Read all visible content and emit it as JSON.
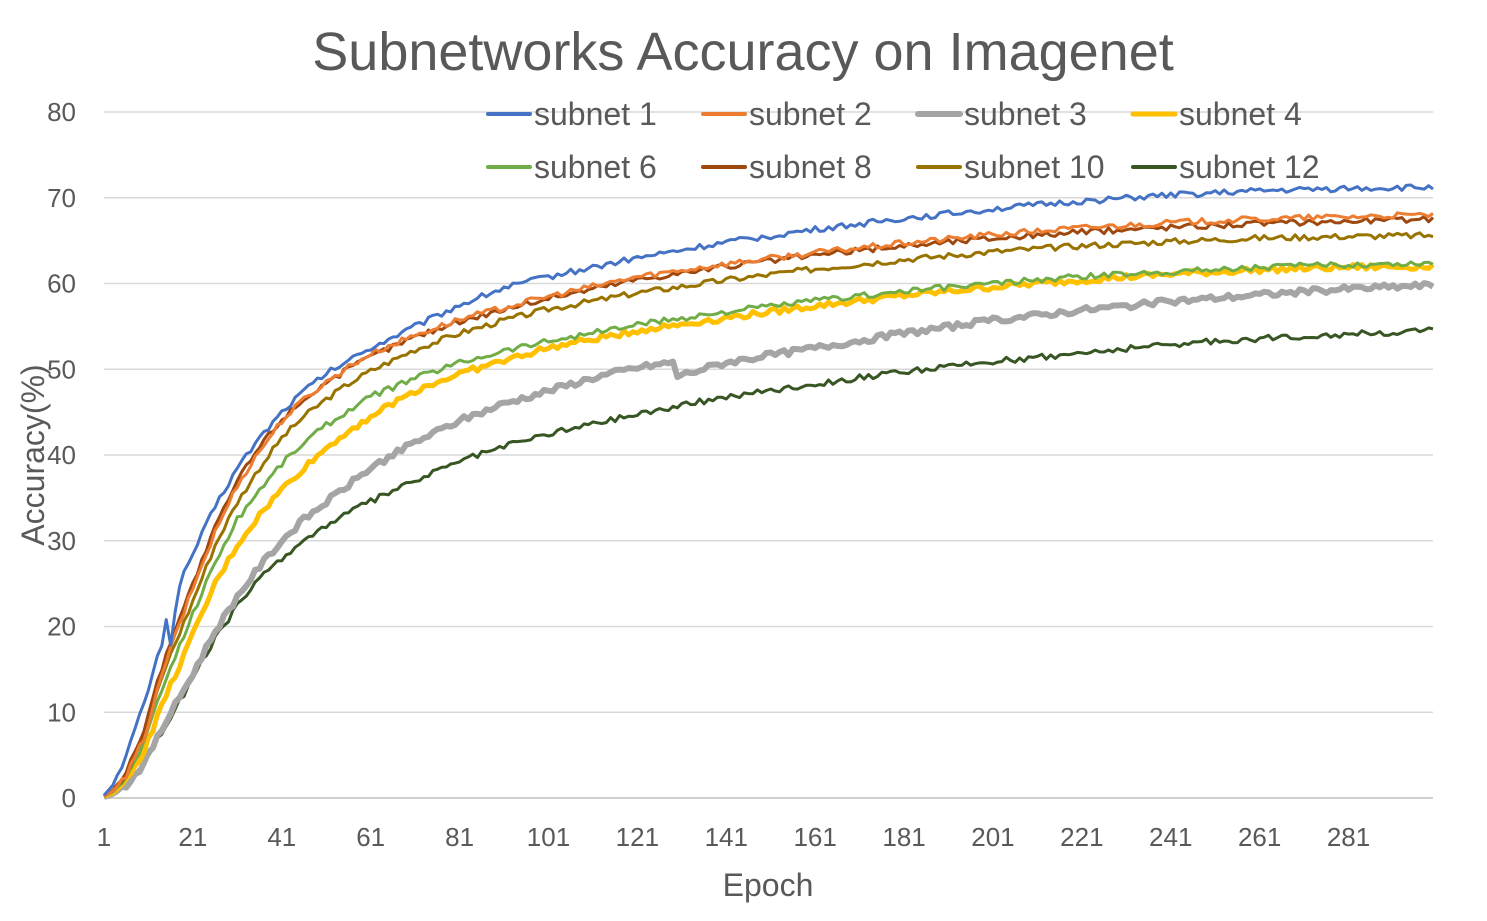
{
  "chart_data": {
    "type": "line",
    "title": "Subnetworks Accuracy on Imagenet",
    "xlabel": "Epoch",
    "ylabel": "Accuracy(%)",
    "xlim": [
      1,
      300
    ],
    "ylim": [
      0,
      80
    ],
    "x_tick_labels": [
      "1",
      "21",
      "41",
      "61",
      "81",
      "101",
      "121",
      "141",
      "161",
      "181",
      "201",
      "221",
      "241",
      "261",
      "281"
    ],
    "y_tick_labels": [
      "0",
      "10",
      "20",
      "30",
      "40",
      "50",
      "60",
      "70",
      "80"
    ],
    "grid": "horizontal",
    "legend_position": "top-right, inside plot",
    "series": [
      {
        "name": "subnet 1",
        "color": "#4472c4",
        "x": [
          1,
          3,
          6,
          10,
          14,
          15,
          16,
          18,
          21,
          26,
          31,
          36,
          41,
          46,
          51,
          56,
          61,
          71,
          81,
          91,
          101,
          121,
          141,
          161,
          181,
          201,
          221,
          241,
          261,
          281,
          300
        ],
        "y": [
          0.3,
          1.5,
          5,
          11,
          18,
          21,
          18,
          25,
          28.5,
          34,
          38.5,
          42,
          45,
          47.5,
          49.5,
          51,
          52.5,
          55,
          57.5,
          59.5,
          60.8,
          63,
          64.8,
          66.3,
          67.6,
          68.7,
          69.6,
          70.3,
          70.8,
          71.1,
          71.2
        ]
      },
      {
        "name": "subnet 2",
        "color": "#ed7d31",
        "x": [
          1,
          3,
          6,
          10,
          15,
          21,
          26,
          31,
          36,
          41,
          46,
          51,
          56,
          61,
          71,
          81,
          91,
          101,
          121,
          141,
          161,
          181,
          201,
          221,
          241,
          261,
          281,
          300
        ],
        "y": [
          0.2,
          0.8,
          2.5,
          7,
          16,
          24.5,
          31,
          36.5,
          40.5,
          44,
          46.5,
          48.5,
          50.3,
          51.8,
          54,
          55.8,
          57.2,
          58.5,
          60.8,
          62.3,
          63.6,
          64.7,
          65.7,
          66.5,
          67.1,
          67.5,
          67.8,
          68
        ]
      },
      {
        "name": "subnet 3",
        "color": "#a5a5a5",
        "x": [
          1,
          3,
          6,
          10,
          15,
          21,
          26,
          31,
          36,
          41,
          46,
          51,
          56,
          61,
          71,
          81,
          91,
          101,
          111,
          121,
          129,
          130,
          141,
          161,
          181,
          201,
          221,
          241,
          261,
          281,
          300
        ],
        "y": [
          0.1,
          0.5,
          1.5,
          4,
          9,
          14.5,
          19.5,
          23.5,
          27,
          30,
          32.5,
          34.5,
          36.5,
          38.5,
          41.5,
          44,
          46,
          47.5,
          49,
          50.2,
          50.8,
          49.2,
          50.8,
          52.5,
          54.2,
          55.7,
          56.9,
          57.9,
          58.7,
          59.4,
          59.8
        ]
      },
      {
        "name": "subnet 4",
        "color": "#ffc000",
        "x": [
          1,
          3,
          6,
          10,
          15,
          21,
          26,
          31,
          36,
          41,
          46,
          51,
          56,
          61,
          71,
          81,
          91,
          101,
          121,
          141,
          161,
          181,
          201,
          221,
          241,
          261,
          281,
          300
        ],
        "y": [
          0.2,
          0.6,
          2,
          5.5,
          12,
          19,
          25,
          29.5,
          33,
          36,
          38.5,
          40.8,
          42.8,
          44.5,
          47.5,
          49.5,
          51,
          52.5,
          54.5,
          56,
          57.4,
          58.6,
          59.6,
          60.4,
          61.1,
          61.6,
          61.9,
          62
        ]
      },
      {
        "name": "subnet 6",
        "color": "#70ad47",
        "x": [
          1,
          3,
          6,
          10,
          15,
          21,
          26,
          31,
          36,
          41,
          46,
          51,
          56,
          61,
          71,
          81,
          91,
          101,
          121,
          141,
          161,
          181,
          201,
          221,
          241,
          261,
          281,
          300
        ],
        "y": [
          0.2,
          0.7,
          2.3,
          6.5,
          14,
          21.5,
          27.5,
          32.5,
          36,
          39,
          41.5,
          43.5,
          45.2,
          46.8,
          49,
          50.8,
          52.2,
          53.3,
          55.2,
          56.7,
          58,
          59.1,
          60,
          60.8,
          61.4,
          61.9,
          62.2,
          62.4
        ]
      },
      {
        "name": "subnet 8",
        "color": "#9e480e",
        "x": [
          1,
          3,
          6,
          10,
          15,
          21,
          26,
          31,
          36,
          41,
          46,
          51,
          56,
          61,
          71,
          81,
          91,
          101,
          121,
          141,
          161,
          181,
          201,
          221,
          241,
          261,
          281,
          300
        ],
        "y": [
          0.2,
          0.9,
          3,
          8,
          17,
          25,
          31.5,
          37,
          41,
          44.2,
          46.5,
          48.5,
          50,
          51.5,
          53.8,
          55.6,
          57,
          58.3,
          60.5,
          62,
          63.3,
          64.4,
          65.3,
          66,
          66.6,
          67,
          67.3,
          67.5
        ]
      },
      {
        "name": "subnet 10",
        "color": "#997300",
        "x": [
          1,
          3,
          6,
          10,
          15,
          21,
          26,
          31,
          36,
          41,
          46,
          51,
          56,
          61,
          71,
          81,
          91,
          101,
          121,
          141,
          161,
          181,
          201,
          221,
          241,
          261,
          281,
          300
        ],
        "y": [
          0.2,
          0.8,
          2.8,
          7.5,
          15.5,
          23,
          29.5,
          34.5,
          38.5,
          42,
          44.5,
          46.5,
          48.3,
          49.8,
          52.3,
          54.2,
          55.7,
          57,
          58.9,
          60.4,
          61.7,
          62.8,
          63.7,
          64.4,
          64.9,
          65.3,
          65.5,
          65.6
        ]
      },
      {
        "name": "subnet 12",
        "color": "#375623",
        "x": [
          1,
          3,
          6,
          10,
          15,
          21,
          26,
          31,
          36,
          41,
          46,
          51,
          56,
          61,
          71,
          81,
          91,
          101,
          121,
          141,
          161,
          181,
          201,
          221,
          241,
          261,
          281,
          300
        ],
        "y": [
          0.1,
          0.5,
          1.6,
          4.2,
          8.5,
          14,
          18.5,
          22.5,
          25.5,
          28,
          30,
          31.8,
          33.3,
          34.6,
          37,
          39.3,
          41,
          42.5,
          44.8,
          46.8,
          48.3,
          49.7,
          50.9,
          51.9,
          52.9,
          53.6,
          54.1,
          54.5
        ]
      }
    ]
  }
}
